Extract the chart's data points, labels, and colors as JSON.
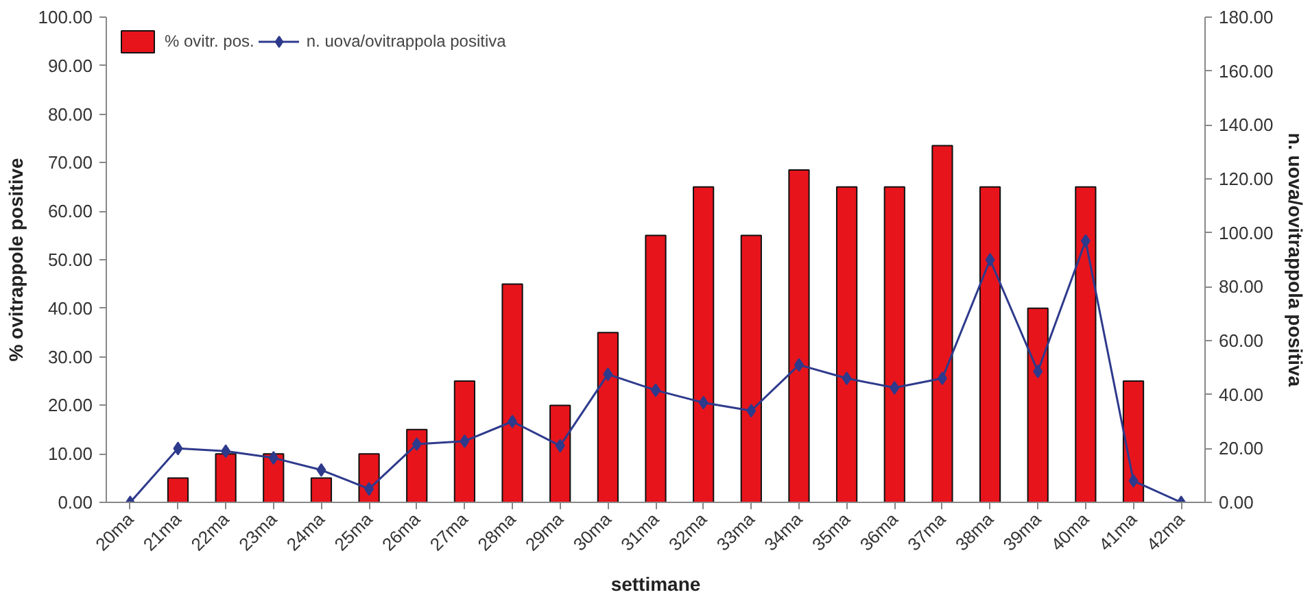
{
  "chart_data": {
    "type": "bar",
    "xlabel": "settimane",
    "ylabel": "% ovitrappole positive",
    "y2label": "n. uova/ovitrappola positiva",
    "categories": [
      "20ma",
      "21ma",
      "22ma",
      "23ma",
      "24ma",
      "25ma",
      "26ma",
      "27ma",
      "28ma",
      "29ma",
      "30ma",
      "31ma",
      "32ma",
      "33ma",
      "34ma",
      "35ma",
      "36ma",
      "37ma",
      "38ma",
      "39ma",
      "40ma",
      "41ma",
      "42ma"
    ],
    "series": [
      {
        "name": "% ovitr. pos.",
        "color": "#e8141c",
        "values": [
          null,
          5,
          10,
          10,
          5,
          10,
          15,
          25,
          45,
          20,
          35,
          55,
          65,
          55,
          68.5,
          65,
          65,
          73.5,
          65,
          40,
          65,
          25,
          null
        ]
      },
      {
        "name": "n. uova/ovitrappola positiva",
        "type": "line",
        "axis": "y2",
        "color": "#2e3a8c",
        "marker": "diamond",
        "values": [
          0,
          20,
          19,
          16.5,
          12,
          5,
          21.6,
          22.7,
          30,
          21,
          47.5,
          41.6,
          37,
          34,
          51,
          46,
          42.5,
          46,
          90,
          48.6,
          97,
          8,
          0
        ]
      }
    ],
    "ylim": [
      0,
      100
    ],
    "yticks": [
      {
        "value": 0,
        "label": "0.00"
      },
      {
        "value": 10,
        "label": "10.00"
      },
      {
        "value": 20,
        "label": "20.00"
      },
      {
        "value": 30,
        "label": "30.00"
      },
      {
        "value": 40,
        "label": "40.00"
      },
      {
        "value": 50,
        "label": "50.00"
      },
      {
        "value": 60,
        "label": "60.00"
      },
      {
        "value": 70,
        "label": "70.00"
      },
      {
        "value": 80,
        "label": "80.00"
      },
      {
        "value": 90,
        "label": "90.00"
      },
      {
        "value": 100,
        "label": "100.00"
      }
    ],
    "y2lim": [
      0,
      180
    ],
    "y2ticks": [
      {
        "value": 0,
        "label": "0.00"
      },
      {
        "value": 20,
        "label": "20.00"
      },
      {
        "value": 40,
        "label": "40.00"
      },
      {
        "value": 60,
        "label": "60.00"
      },
      {
        "value": 80,
        "label": "80.00"
      },
      {
        "value": 100,
        "label": "100.00"
      },
      {
        "value": 120,
        "label": "120.00"
      },
      {
        "value": 140,
        "label": "140.00"
      },
      {
        "value": 160,
        "label": "160.00"
      },
      {
        "value": 180,
        "label": "180.00"
      }
    ],
    "legend": "top left",
    "grid": false
  }
}
